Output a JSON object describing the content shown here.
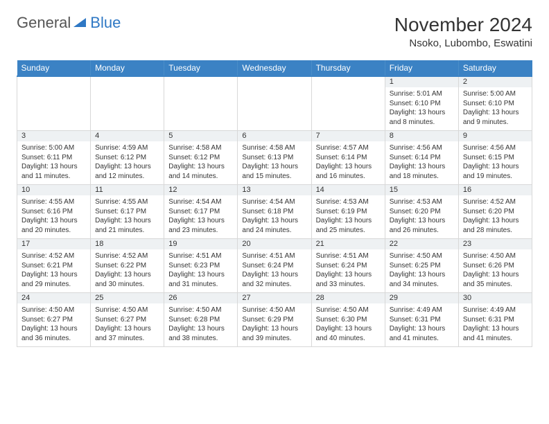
{
  "logo": {
    "text1": "General",
    "text2": "Blue",
    "icon_color": "#2f78c4"
  },
  "title": "November 2024",
  "location": "Nsoko, Lubombo, Eswatini",
  "header_color": "#3b82c4",
  "daynum_bg": "#eef1f3",
  "border_color": "#d8d8d8",
  "days_of_week": [
    "Sunday",
    "Monday",
    "Tuesday",
    "Wednesday",
    "Thursday",
    "Friday",
    "Saturday"
  ],
  "weeks": [
    [
      null,
      null,
      null,
      null,
      null,
      {
        "n": "1",
        "sunrise": "Sunrise: 5:01 AM",
        "sunset": "Sunset: 6:10 PM",
        "daylight": "Daylight: 13 hours and 8 minutes."
      },
      {
        "n": "2",
        "sunrise": "Sunrise: 5:00 AM",
        "sunset": "Sunset: 6:10 PM",
        "daylight": "Daylight: 13 hours and 9 minutes."
      }
    ],
    [
      {
        "n": "3",
        "sunrise": "Sunrise: 5:00 AM",
        "sunset": "Sunset: 6:11 PM",
        "daylight": "Daylight: 13 hours and 11 minutes."
      },
      {
        "n": "4",
        "sunrise": "Sunrise: 4:59 AM",
        "sunset": "Sunset: 6:12 PM",
        "daylight": "Daylight: 13 hours and 12 minutes."
      },
      {
        "n": "5",
        "sunrise": "Sunrise: 4:58 AM",
        "sunset": "Sunset: 6:12 PM",
        "daylight": "Daylight: 13 hours and 14 minutes."
      },
      {
        "n": "6",
        "sunrise": "Sunrise: 4:58 AM",
        "sunset": "Sunset: 6:13 PM",
        "daylight": "Daylight: 13 hours and 15 minutes."
      },
      {
        "n": "7",
        "sunrise": "Sunrise: 4:57 AM",
        "sunset": "Sunset: 6:14 PM",
        "daylight": "Daylight: 13 hours and 16 minutes."
      },
      {
        "n": "8",
        "sunrise": "Sunrise: 4:56 AM",
        "sunset": "Sunset: 6:14 PM",
        "daylight": "Daylight: 13 hours and 18 minutes."
      },
      {
        "n": "9",
        "sunrise": "Sunrise: 4:56 AM",
        "sunset": "Sunset: 6:15 PM",
        "daylight": "Daylight: 13 hours and 19 minutes."
      }
    ],
    [
      {
        "n": "10",
        "sunrise": "Sunrise: 4:55 AM",
        "sunset": "Sunset: 6:16 PM",
        "daylight": "Daylight: 13 hours and 20 minutes."
      },
      {
        "n": "11",
        "sunrise": "Sunrise: 4:55 AM",
        "sunset": "Sunset: 6:17 PM",
        "daylight": "Daylight: 13 hours and 21 minutes."
      },
      {
        "n": "12",
        "sunrise": "Sunrise: 4:54 AM",
        "sunset": "Sunset: 6:17 PM",
        "daylight": "Daylight: 13 hours and 23 minutes."
      },
      {
        "n": "13",
        "sunrise": "Sunrise: 4:54 AM",
        "sunset": "Sunset: 6:18 PM",
        "daylight": "Daylight: 13 hours and 24 minutes."
      },
      {
        "n": "14",
        "sunrise": "Sunrise: 4:53 AM",
        "sunset": "Sunset: 6:19 PM",
        "daylight": "Daylight: 13 hours and 25 minutes."
      },
      {
        "n": "15",
        "sunrise": "Sunrise: 4:53 AM",
        "sunset": "Sunset: 6:20 PM",
        "daylight": "Daylight: 13 hours and 26 minutes."
      },
      {
        "n": "16",
        "sunrise": "Sunrise: 4:52 AM",
        "sunset": "Sunset: 6:20 PM",
        "daylight": "Daylight: 13 hours and 28 minutes."
      }
    ],
    [
      {
        "n": "17",
        "sunrise": "Sunrise: 4:52 AM",
        "sunset": "Sunset: 6:21 PM",
        "daylight": "Daylight: 13 hours and 29 minutes."
      },
      {
        "n": "18",
        "sunrise": "Sunrise: 4:52 AM",
        "sunset": "Sunset: 6:22 PM",
        "daylight": "Daylight: 13 hours and 30 minutes."
      },
      {
        "n": "19",
        "sunrise": "Sunrise: 4:51 AM",
        "sunset": "Sunset: 6:23 PM",
        "daylight": "Daylight: 13 hours and 31 minutes."
      },
      {
        "n": "20",
        "sunrise": "Sunrise: 4:51 AM",
        "sunset": "Sunset: 6:24 PM",
        "daylight": "Daylight: 13 hours and 32 minutes."
      },
      {
        "n": "21",
        "sunrise": "Sunrise: 4:51 AM",
        "sunset": "Sunset: 6:24 PM",
        "daylight": "Daylight: 13 hours and 33 minutes."
      },
      {
        "n": "22",
        "sunrise": "Sunrise: 4:50 AM",
        "sunset": "Sunset: 6:25 PM",
        "daylight": "Daylight: 13 hours and 34 minutes."
      },
      {
        "n": "23",
        "sunrise": "Sunrise: 4:50 AM",
        "sunset": "Sunset: 6:26 PM",
        "daylight": "Daylight: 13 hours and 35 minutes."
      }
    ],
    [
      {
        "n": "24",
        "sunrise": "Sunrise: 4:50 AM",
        "sunset": "Sunset: 6:27 PM",
        "daylight": "Daylight: 13 hours and 36 minutes."
      },
      {
        "n": "25",
        "sunrise": "Sunrise: 4:50 AM",
        "sunset": "Sunset: 6:27 PM",
        "daylight": "Daylight: 13 hours and 37 minutes."
      },
      {
        "n": "26",
        "sunrise": "Sunrise: 4:50 AM",
        "sunset": "Sunset: 6:28 PM",
        "daylight": "Daylight: 13 hours and 38 minutes."
      },
      {
        "n": "27",
        "sunrise": "Sunrise: 4:50 AM",
        "sunset": "Sunset: 6:29 PM",
        "daylight": "Daylight: 13 hours and 39 minutes."
      },
      {
        "n": "28",
        "sunrise": "Sunrise: 4:50 AM",
        "sunset": "Sunset: 6:30 PM",
        "daylight": "Daylight: 13 hours and 40 minutes."
      },
      {
        "n": "29",
        "sunrise": "Sunrise: 4:49 AM",
        "sunset": "Sunset: 6:31 PM",
        "daylight": "Daylight: 13 hours and 41 minutes."
      },
      {
        "n": "30",
        "sunrise": "Sunrise: 4:49 AM",
        "sunset": "Sunset: 6:31 PM",
        "daylight": "Daylight: 13 hours and 41 minutes."
      }
    ]
  ]
}
